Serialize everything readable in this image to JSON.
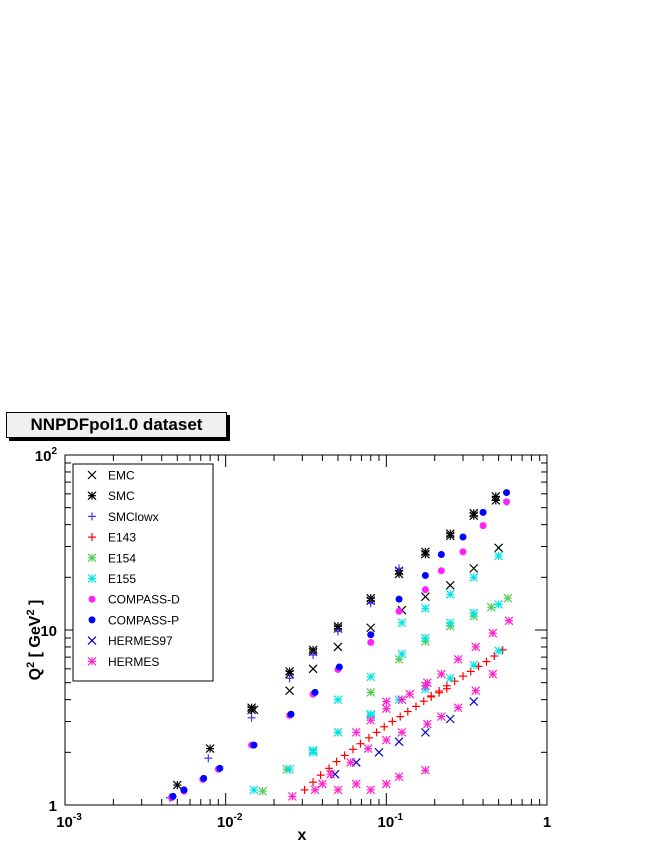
{
  "chart_data": {
    "type": "scatter",
    "title": "NNPDFpol1.0 dataset",
    "xlabel": "x",
    "ylabel": "Q2 [ GeV2 ]",
    "x_scale": "log",
    "y_scale": "log",
    "xlim": [
      0.001,
      1
    ],
    "ylim": [
      1,
      100
    ],
    "x_tick_labels": [
      {
        "value": 0.001,
        "base": "10",
        "exp": "-3"
      },
      {
        "value": 0.01,
        "base": "10",
        "exp": "-2"
      },
      {
        "value": 0.1,
        "base": "10",
        "exp": "-1"
      },
      {
        "value": 1,
        "base": "1",
        "exp": ""
      }
    ],
    "y_tick_labels": [
      {
        "value": 1,
        "base": "1",
        "exp": ""
      },
      {
        "value": 10,
        "base": "10",
        "exp": ""
      },
      {
        "value": 100,
        "base": "10",
        "exp": "2"
      }
    ],
    "legend_position": "top-left",
    "grid": false,
    "series": [
      {
        "name": "EMC",
        "marker": "x",
        "color": "#000000",
        "points": [
          [
            0.015,
            3.5
          ],
          [
            0.025,
            4.5
          ],
          [
            0.035,
            6.0
          ],
          [
            0.05,
            8.0
          ],
          [
            0.08,
            10.3
          ],
          [
            0.125,
            13.0
          ],
          [
            0.175,
            15.5
          ],
          [
            0.25,
            18.0
          ],
          [
            0.35,
            22.5
          ],
          [
            0.5,
            29.5
          ]
        ]
      },
      {
        "name": "SMC",
        "marker": "star",
        "color": "#000000",
        "points": [
          [
            0.005,
            1.3
          ],
          [
            0.008,
            2.1
          ],
          [
            0.0145,
            3.5
          ],
          [
            0.025,
            5.6
          ],
          [
            0.035,
            7.5
          ],
          [
            0.05,
            10.2
          ],
          [
            0.08,
            14.7
          ],
          [
            0.12,
            20.9
          ],
          [
            0.175,
            27.1
          ],
          [
            0.25,
            34.5
          ],
          [
            0.35,
            45.0
          ],
          [
            0.48,
            55.0
          ],
          [
            0.0145,
            3.6
          ],
          [
            0.025,
            5.8
          ],
          [
            0.035,
            7.7
          ],
          [
            0.05,
            10.5
          ],
          [
            0.08,
            15.2
          ],
          [
            0.12,
            21.8
          ],
          [
            0.175,
            28.0
          ],
          [
            0.25,
            35.5
          ],
          [
            0.35,
            46.5
          ],
          [
            0.48,
            58.0
          ]
        ]
      },
      {
        "name": "SMClowx",
        "marker": "plus",
        "color": "#3a3aff",
        "points": [
          [
            0.0045,
            1.1
          ],
          [
            0.0078,
            1.85
          ],
          [
            0.0145,
            3.15
          ],
          [
            0.025,
            5.3
          ],
          [
            0.035,
            7.2
          ],
          [
            0.05,
            9.8
          ],
          [
            0.08,
            14.2
          ],
          [
            0.12,
            22.5
          ]
        ]
      },
      {
        "name": "E143",
        "marker": "plus",
        "color": "#ff0000",
        "points": [
          [
            0.031,
            1.22
          ],
          [
            0.035,
            1.35
          ],
          [
            0.039,
            1.48
          ],
          [
            0.044,
            1.62
          ],
          [
            0.049,
            1.77
          ],
          [
            0.055,
            1.92
          ],
          [
            0.062,
            2.08
          ],
          [
            0.069,
            2.24
          ],
          [
            0.078,
            2.42
          ],
          [
            0.087,
            2.6
          ],
          [
            0.097,
            2.8
          ],
          [
            0.109,
            3.0
          ],
          [
            0.122,
            3.2
          ],
          [
            0.136,
            3.42
          ],
          [
            0.153,
            3.66
          ],
          [
            0.171,
            3.92
          ],
          [
            0.19,
            4.2
          ],
          [
            0.213,
            4.48
          ],
          [
            0.238,
            4.8
          ],
          [
            0.266,
            5.1
          ],
          [
            0.3,
            5.45
          ],
          [
            0.335,
            5.8
          ],
          [
            0.375,
            6.2
          ],
          [
            0.42,
            6.6
          ],
          [
            0.47,
            7.1
          ],
          [
            0.53,
            7.7
          ],
          [
            0.19,
            4.15
          ],
          [
            0.213,
            4.38
          ],
          [
            0.238,
            4.62
          ]
        ]
      },
      {
        "name": "E154",
        "marker": "star",
        "color": "#55cc55",
        "points": [
          [
            0.017,
            1.2
          ],
          [
            0.024,
            1.6
          ],
          [
            0.035,
            2.05
          ],
          [
            0.05,
            2.6
          ],
          [
            0.08,
            4.4
          ],
          [
            0.12,
            6.8
          ],
          [
            0.175,
            8.6
          ],
          [
            0.25,
            10.5
          ],
          [
            0.35,
            12.0
          ],
          [
            0.45,
            13.5
          ],
          [
            0.57,
            15.2
          ]
        ]
      },
      {
        "name": "E155",
        "marker": "star",
        "color": "#00e5e5",
        "points": [
          [
            0.015,
            1.22
          ],
          [
            0.025,
            1.6
          ],
          [
            0.035,
            2.0
          ],
          [
            0.05,
            2.6
          ],
          [
            0.08,
            3.3
          ],
          [
            0.12,
            4.0
          ],
          [
            0.175,
            4.6
          ],
          [
            0.25,
            5.3
          ],
          [
            0.35,
            6.3
          ],
          [
            0.5,
            7.6
          ],
          [
            0.05,
            4.0
          ],
          [
            0.08,
            5.4
          ],
          [
            0.125,
            7.3
          ],
          [
            0.175,
            9.0
          ],
          [
            0.25,
            11.0
          ],
          [
            0.35,
            12.5
          ],
          [
            0.5,
            14.0
          ],
          [
            0.125,
            11.0
          ],
          [
            0.175,
            13.3
          ],
          [
            0.25,
            16.0
          ],
          [
            0.35,
            20.0
          ],
          [
            0.5,
            26.5
          ],
          [
            0.035,
            2.05
          ],
          [
            0.08,
            3.25
          ]
        ]
      },
      {
        "name": "COMPASS-D",
        "marker": "dot",
        "color": "#ff22ff",
        "points": [
          [
            0.0046,
            1.1
          ],
          [
            0.0055,
            1.2
          ],
          [
            0.0072,
            1.4
          ],
          [
            0.009,
            1.6
          ],
          [
            0.0145,
            2.2
          ],
          [
            0.025,
            3.25
          ],
          [
            0.035,
            4.3
          ],
          [
            0.05,
            5.95
          ],
          [
            0.08,
            8.5
          ],
          [
            0.12,
            12.8
          ],
          [
            0.175,
            17.0
          ],
          [
            0.22,
            21.8
          ],
          [
            0.3,
            28.0
          ],
          [
            0.4,
            39.5
          ],
          [
            0.56,
            54.0
          ]
        ]
      },
      {
        "name": "COMPASS-P",
        "marker": "dot",
        "color": "#0000ff",
        "points": [
          [
            0.0047,
            1.12
          ],
          [
            0.0055,
            1.22
          ],
          [
            0.0073,
            1.42
          ],
          [
            0.0092,
            1.62
          ],
          [
            0.015,
            2.2
          ],
          [
            0.0255,
            3.3
          ],
          [
            0.036,
            4.4
          ],
          [
            0.051,
            6.15
          ],
          [
            0.08,
            9.4
          ],
          [
            0.12,
            15.0
          ],
          [
            0.175,
            20.5
          ],
          [
            0.22,
            27.0
          ],
          [
            0.3,
            34.0
          ],
          [
            0.4,
            47.0
          ],
          [
            0.56,
            61.0
          ]
        ]
      },
      {
        "name": "HERMES97",
        "marker": "x",
        "color": "#0000cc",
        "points": [
          [
            0.048,
            1.5
          ],
          [
            0.065,
            1.75
          ],
          [
            0.09,
            2.0
          ],
          [
            0.12,
            2.3
          ],
          [
            0.175,
            2.6
          ],
          [
            0.25,
            3.1
          ],
          [
            0.35,
            3.9
          ]
        ]
      },
      {
        "name": "HERMES",
        "marker": "star",
        "color": "#ff22cc",
        "points": [
          [
            0.026,
            1.12
          ],
          [
            0.036,
            1.22
          ],
          [
            0.04,
            1.32
          ],
          [
            0.05,
            1.22
          ],
          [
            0.065,
            1.32
          ],
          [
            0.08,
            1.22
          ],
          [
            0.1,
            1.32
          ],
          [
            0.12,
            1.45
          ],
          [
            0.175,
            1.58
          ],
          [
            0.045,
            1.5
          ],
          [
            0.06,
            1.75
          ],
          [
            0.077,
            2.1
          ],
          [
            0.1,
            2.35
          ],
          [
            0.125,
            2.6
          ],
          [
            0.18,
            2.9
          ],
          [
            0.22,
            3.2
          ],
          [
            0.28,
            3.6
          ],
          [
            0.36,
            4.5
          ],
          [
            0.46,
            5.6
          ],
          [
            0.065,
            2.6
          ],
          [
            0.08,
            3.05
          ],
          [
            0.1,
            3.55
          ],
          [
            0.125,
            4.0
          ],
          [
            0.175,
            4.8
          ],
          [
            0.22,
            5.6
          ],
          [
            0.28,
            6.8
          ],
          [
            0.36,
            8.0
          ],
          [
            0.46,
            9.6
          ],
          [
            0.58,
            11.3
          ],
          [
            0.1,
            3.9
          ],
          [
            0.14,
            4.3
          ],
          [
            0.18,
            5.0
          ]
        ]
      }
    ]
  }
}
